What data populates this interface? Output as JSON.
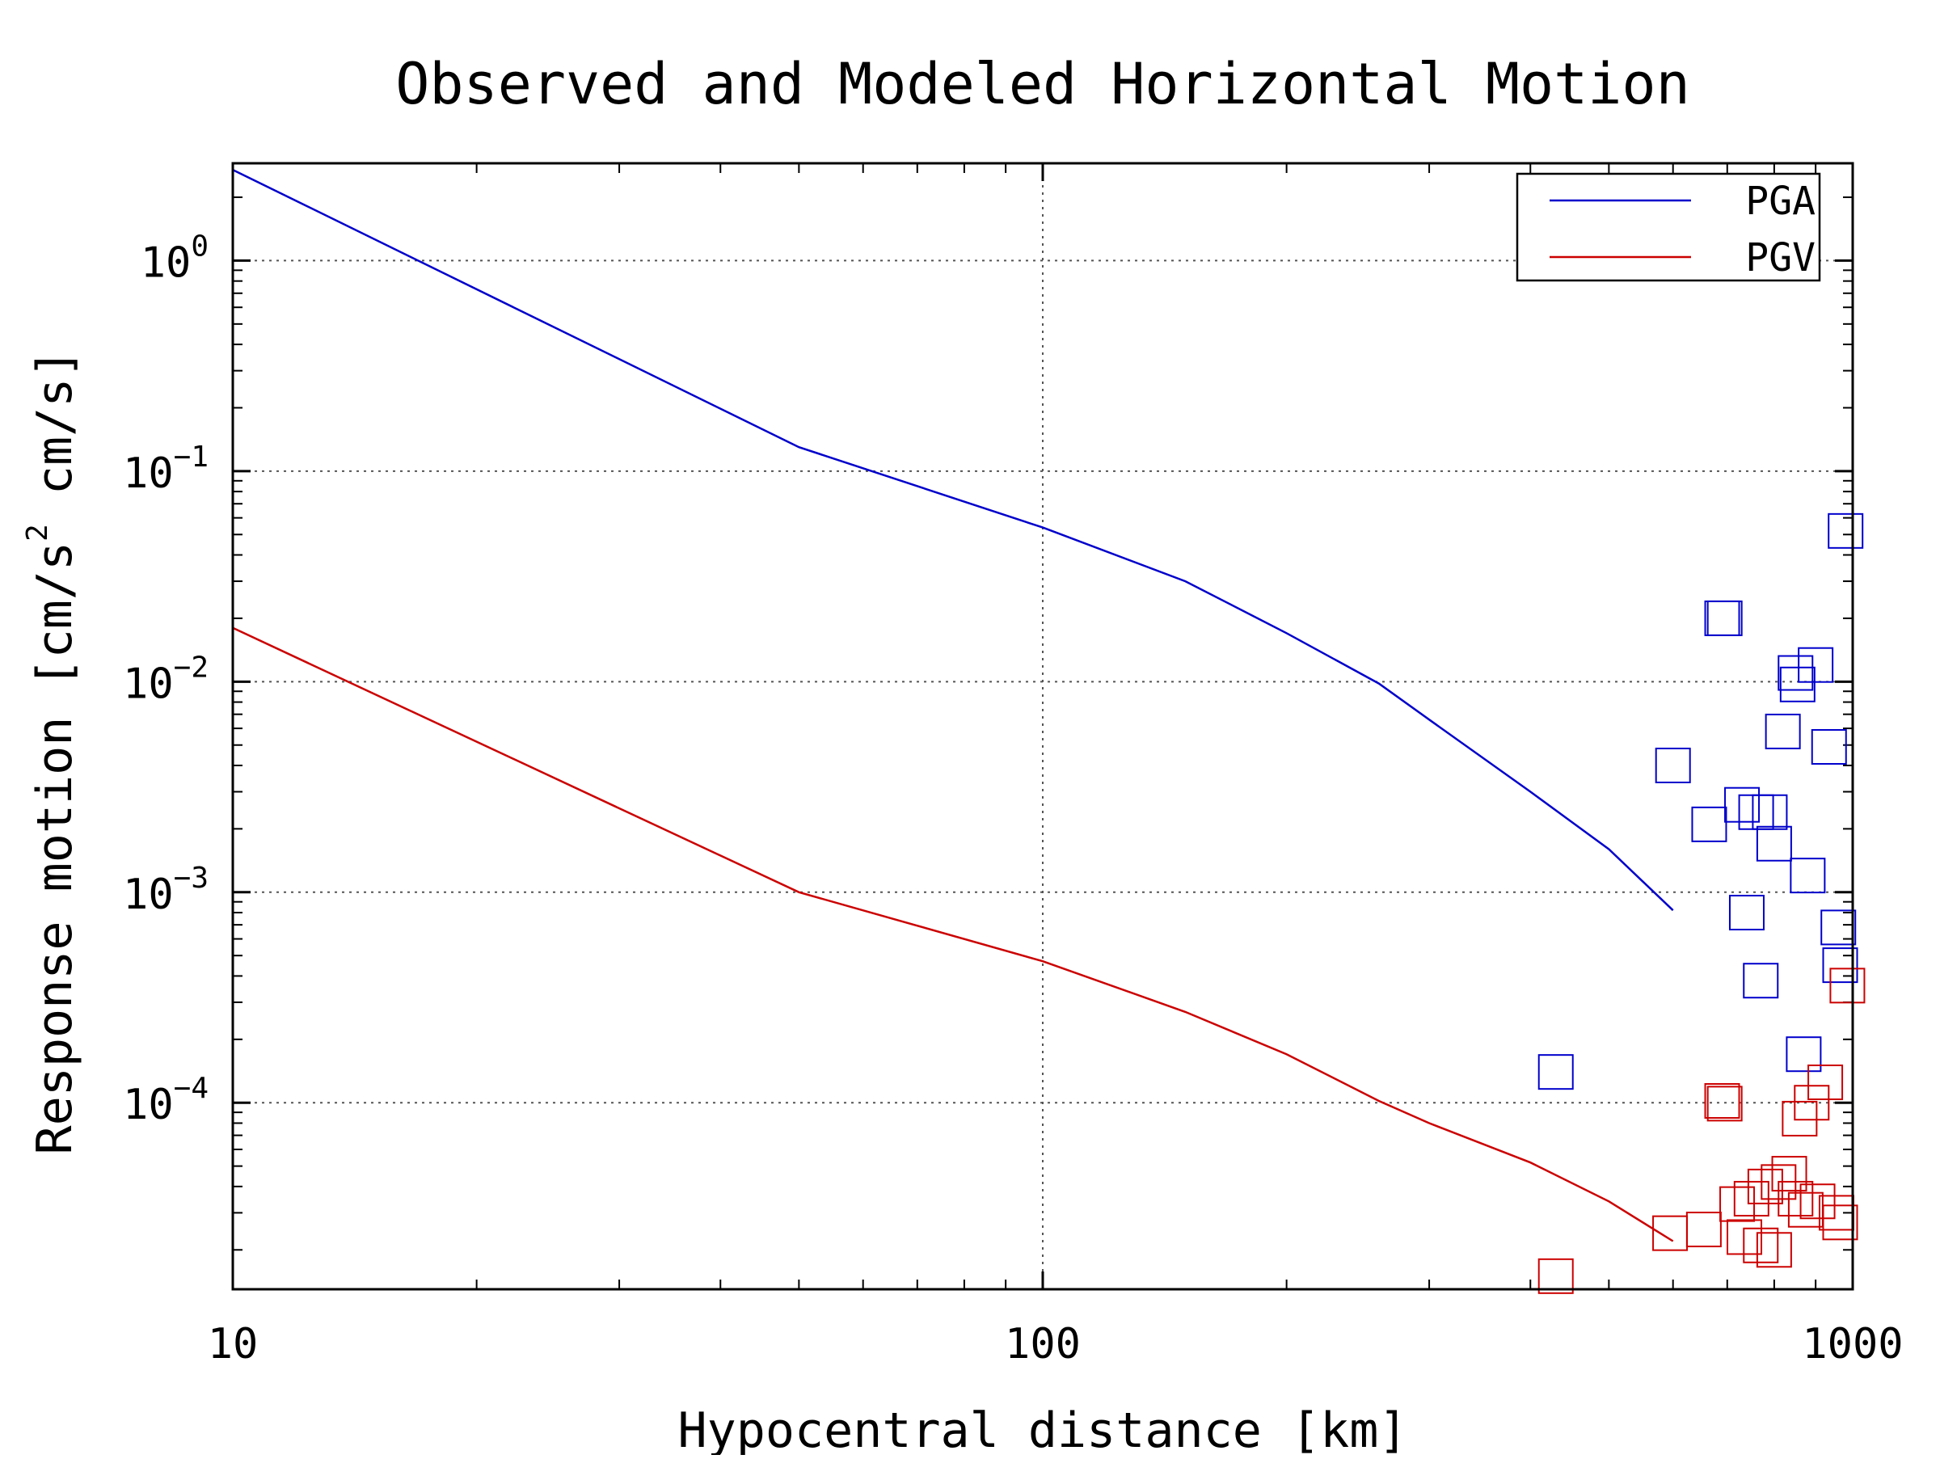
{
  "chart_data": {
    "type": "line",
    "title": "Observed and Modeled Horizontal Motion",
    "xlabel": "Hypocentral distance [km]",
    "ylabel": "Response motion [cm/s",
    "ylabel_sup": "2",
    "ylabel_suffix": " cm/s]",
    "x_scale": "log",
    "y_scale": "log",
    "xlim": [
      10,
      1000
    ],
    "ylim": [
      1.3e-05,
      2.9
    ],
    "grid": true,
    "legend_position": "top-right",
    "x_ticks": [
      {
        "value": 10,
        "label": "10"
      },
      {
        "value": 100,
        "label": "100"
      },
      {
        "value": 1000,
        "label": "1000"
      }
    ],
    "y_ticks": [
      {
        "value": 1,
        "base": "10",
        "exp": "0"
      },
      {
        "value": 0.1,
        "base": "10",
        "exp": "−1"
      },
      {
        "value": 0.01,
        "base": "10",
        "exp": "−2"
      },
      {
        "value": 0.001,
        "base": "10",
        "exp": "−3"
      },
      {
        "value": 0.0001,
        "base": "10",
        "exp": "−4"
      }
    ],
    "series": [
      {
        "name": "PGA",
        "color": "#0000cc",
        "marker": "square",
        "x": [
          10,
          50,
          100,
          150,
          200,
          260,
          300,
          400,
          500,
          600
        ],
        "y": [
          2.7,
          0.13,
          0.054,
          0.03,
          0.017,
          0.0098,
          0.0066,
          0.003,
          0.0016,
          0.00082
        ],
        "observed": [
          {
            "x": 430,
            "y": 0.00014
          },
          {
            "x": 600,
            "y": 0.004
          },
          {
            "x": 665,
            "y": 0.0021
          },
          {
            "x": 690,
            "y": 0.02
          },
          {
            "x": 695,
            "y": 0.02
          },
          {
            "x": 730,
            "y": 0.0026
          },
          {
            "x": 740,
            "y": 0.0008
          },
          {
            "x": 760,
            "y": 0.0024
          },
          {
            "x": 770,
            "y": 0.00038
          },
          {
            "x": 790,
            "y": 0.0024
          },
          {
            "x": 800,
            "y": 0.0017
          },
          {
            "x": 820,
            "y": 0.0058
          },
          {
            "x": 850,
            "y": 0.011
          },
          {
            "x": 855,
            "y": 0.0097
          },
          {
            "x": 870,
            "y": 0.00017
          },
          {
            "x": 880,
            "y": 0.0012
          },
          {
            "x": 900,
            "y": 0.012
          },
          {
            "x": 935,
            "y": 0.0049
          },
          {
            "x": 960,
            "y": 0.00068
          },
          {
            "x": 965,
            "y": 0.00045
          },
          {
            "x": 980,
            "y": 0.052
          }
        ]
      },
      {
        "name": "PGV",
        "color": "#cc0000",
        "marker": "square",
        "x": [
          10,
          50,
          100,
          150,
          200,
          260,
          300,
          400,
          500,
          600
        ],
        "y": [
          0.018,
          0.001,
          0.00047,
          0.00027,
          0.00017,
          0.000102,
          8e-05,
          5.2e-05,
          3.4e-05,
          2.2e-05
        ],
        "observed": [
          {
            "x": 430,
            "y": 1.5e-05
          },
          {
            "x": 595,
            "y": 2.4e-05
          },
          {
            "x": 655,
            "y": 2.5e-05
          },
          {
            "x": 690,
            "y": 0.000102
          },
          {
            "x": 695,
            "y": 9.9e-05
          },
          {
            "x": 720,
            "y": 3.3e-05
          },
          {
            "x": 735,
            "y": 2.3e-05
          },
          {
            "x": 750,
            "y": 3.5e-05
          },
          {
            "x": 770,
            "y": 2.1e-05
          },
          {
            "x": 780,
            "y": 4e-05
          },
          {
            "x": 800,
            "y": 2e-05
          },
          {
            "x": 810,
            "y": 4.2e-05
          },
          {
            "x": 835,
            "y": 4.6e-05
          },
          {
            "x": 850,
            "y": 3.5e-05
          },
          {
            "x": 860,
            "y": 8.4e-05
          },
          {
            "x": 875,
            "y": 3.1e-05
          },
          {
            "x": 890,
            "y": 0.0001
          },
          {
            "x": 905,
            "y": 3.4e-05
          },
          {
            "x": 925,
            "y": 0.000125
          },
          {
            "x": 955,
            "y": 3e-05
          },
          {
            "x": 965,
            "y": 2.7e-05
          },
          {
            "x": 985,
            "y": 0.00036
          }
        ]
      }
    ]
  }
}
